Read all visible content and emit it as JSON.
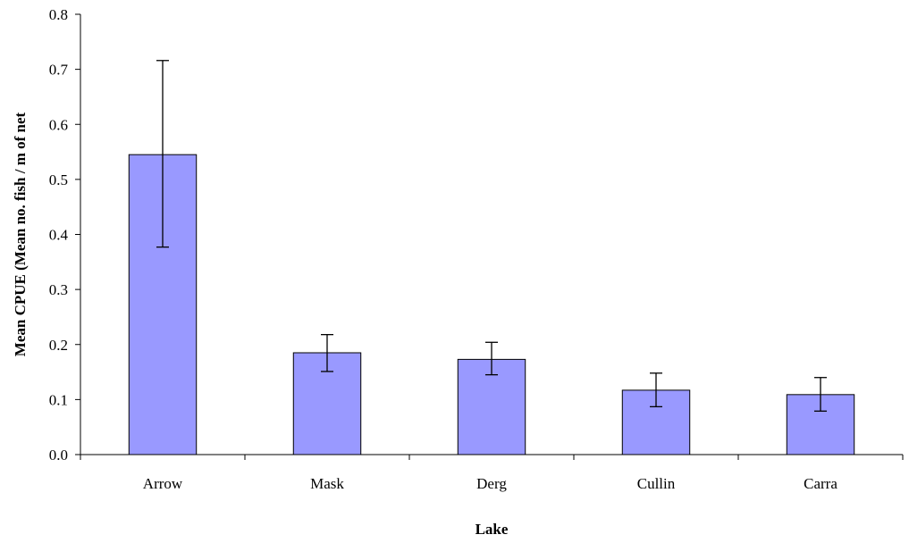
{
  "chart_data": {
    "type": "bar",
    "title": "",
    "xlabel": "Lake",
    "ylabel": "Mean CPUE (Mean no. fish / m of net",
    "categories": [
      "Arrow",
      "Mask",
      "Derg",
      "Cullin",
      "Carra"
    ],
    "values": [
      0.545,
      0.185,
      0.173,
      0.117,
      0.109
    ],
    "error_bars": {
      "upper": [
        0.716,
        0.218,
        0.204,
        0.148,
        0.14
      ],
      "lower": [
        0.377,
        0.151,
        0.145,
        0.087,
        0.079
      ]
    },
    "ylim": [
      0,
      0.8
    ],
    "yticks": [
      0.0,
      0.1,
      0.2,
      0.3,
      0.4,
      0.5,
      0.6,
      0.7,
      0.8
    ],
    "ytick_labels": [
      "0.0",
      "0.1",
      "0.2",
      "0.3",
      "0.4",
      "0.5",
      "0.6",
      "0.7",
      "0.8"
    ],
    "grid": false,
    "legend": "none",
    "colors": {
      "bar_fill": "#9999ff",
      "bar_stroke": "#000000",
      "axis": "#000000"
    }
  }
}
